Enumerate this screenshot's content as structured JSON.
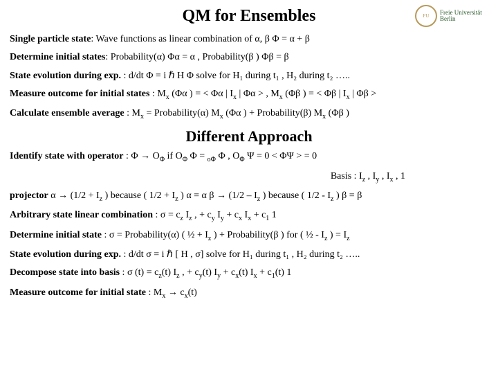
{
  "titles": {
    "main": "QM for Ensembles",
    "secondary": "Different Approach"
  },
  "logo": {
    "name": "Freie Universität",
    "city": "Berlin"
  },
  "section1": {
    "r1": {
      "label": "Single particle state",
      "text1": ":   Wave functions as linear combination of ",
      "sym1": "α, β",
      "gap": "      ",
      "sym2": "Φ = α + β"
    },
    "r2": {
      "label": "Determine initial states",
      "text1": ":   Probability(",
      "a": "α",
      "text2": ")  ",
      "eq1": "Φα = α ",
      "text3": ",  Probability(",
      "b": "β",
      "text4": " )   ",
      "eq2": "Φβ = β"
    },
    "r3": {
      "label": "State evolution during exp.",
      "text1": " :   d/dt  ",
      "phi": "Φ",
      "text2": " =   i ",
      "hbar": "ℏ",
      "text3": "  H ",
      "phi2": "Φ",
      "solve": "       solve for H₁ during t₁ ,  H₂ during t₂  ….."
    },
    "r4": {
      "label": "Measure outcome for initial states",
      "text1": " :   M",
      "x1": "x",
      "text2": " (",
      "pa": "Φα",
      "text3": " ) = < ",
      "pa2": "Φα",
      "text4": " | I",
      "x2": "x",
      "text5": " | ",
      "pa3": "Φα",
      "text6": " >      ,  M",
      "x3": "x",
      "text7": " (",
      "pb": "Φβ",
      "text8": " )  = < ",
      "pb2": "Φβ",
      "text9": " | I",
      "x4": "x",
      "text10": " | ",
      "pb3": "Φβ",
      "text11": " >"
    },
    "r5": {
      "label": "Calculate ensemble average",
      "text1": "           :   M",
      "x1": "x",
      "text2": " =  Probability(",
      "a": "α",
      "text3": ") M",
      "x2": "x",
      "text4": " (",
      "pa": "Φα",
      "text5": " )  +  Probability(",
      "b": "β",
      "text6": ") M",
      "x3": "x",
      "text7": " (",
      "pb": "Φβ",
      "text8": " )"
    }
  },
  "section2": {
    "r1": {
      "label": "Identify state with operator",
      "text1": "   :  ",
      "phi": "Φ",
      "arrow": "→",
      "text2": " O",
      "psub": "Φ",
      "text3": "  if  O",
      "psub2": "Φ",
      "text4": " ",
      "ph2": "Φ",
      "text5": " = ",
      "o": "oΦ",
      "text6": "  ",
      "ph3": "Φ",
      "text7": "        ,  O",
      "psub3": "Φ",
      "text8": " ",
      "psi": "Ψ",
      "text9": " = 0   < ",
      "ph4": "Φ",
      "psi2": "Ψ",
      "text10": " > = 0"
    },
    "r1b": {
      "text1": "Basis :     I",
      "z": "z",
      "text2": " , I",
      "y": "y",
      "text3": " , I",
      "x": "x",
      "text4": " , 1"
    },
    "r2": {
      "label": "projector",
      "a": " α ",
      "arrow": "→",
      "text1": "  (1/2 + I",
      "z": "z",
      "text2": " ) because ( 1/2 + I",
      "z2": "z",
      "text3": " ) ",
      "a2": "α = α",
      "gap": "        ",
      "b": "β ",
      "arrow2": "→",
      "text4": " (1/2 – I",
      "z3": "z",
      "text5": " ) because ( 1/2 - I",
      "z4": "z",
      "text6": " ) ",
      "b2": "β = β"
    },
    "r3": {
      "label": "Arbitrary state linear combination",
      "text1": "  :     ",
      "sigma": "σ",
      "text2": "  =  c",
      "z": "z",
      "text3": " I",
      "z2": "z",
      "text4": "  , + c",
      "y": "y",
      "text5": " I",
      "y2": "y",
      "text6": "  + c",
      "x": "x",
      "text7": " I",
      "x2": "x",
      "text8": "  +  c",
      "one": "1",
      "text9": " 1"
    },
    "r4": {
      "label": "Determine initial state",
      "text1": "              :   ",
      "sigma": "σ",
      "text2": " =  Probability(",
      "a": "α",
      "text3": ") ( ½ + I",
      "z": "z",
      "text4": " ) + Probability(",
      "b": "β",
      "text5": " ) for  ( ½ - I",
      "z2": "z",
      "text6": " )  =   I",
      "z3": "z"
    },
    "r5": {
      "label": "State evolution during exp.",
      "text1": "  :    d/dt  ",
      "sigma": "σ",
      "text2": " =   i ",
      "hbar": "ℏ",
      "text3": " [ H , ",
      "sigma2": "σ",
      "text4": "]      solve for H₁ during t₁ ,  H₂ during t₂  ….."
    },
    "r6": {
      "label": "Decompose state into basis",
      "text1": "   :    ",
      "sigma": "σ",
      "text2": " (t)  =   c",
      "z": "z",
      "text3": "(t) I",
      "z2": "z",
      "text4": "  , + c",
      "y": "y",
      "text5": "(t)  I",
      "y2": "y",
      "text6": "  + c",
      "x": "x",
      "text7": "(t) I",
      "x2": "x",
      "text8": "  +  c",
      "one": "1",
      "text9": "(t)  1"
    },
    "r7": {
      "label": "Measure outcome for initial state",
      "text1": " :   M",
      "x": "x",
      "arrow": "→",
      "text2": "  c",
      "x2": "x",
      "text3": "(t)"
    }
  }
}
